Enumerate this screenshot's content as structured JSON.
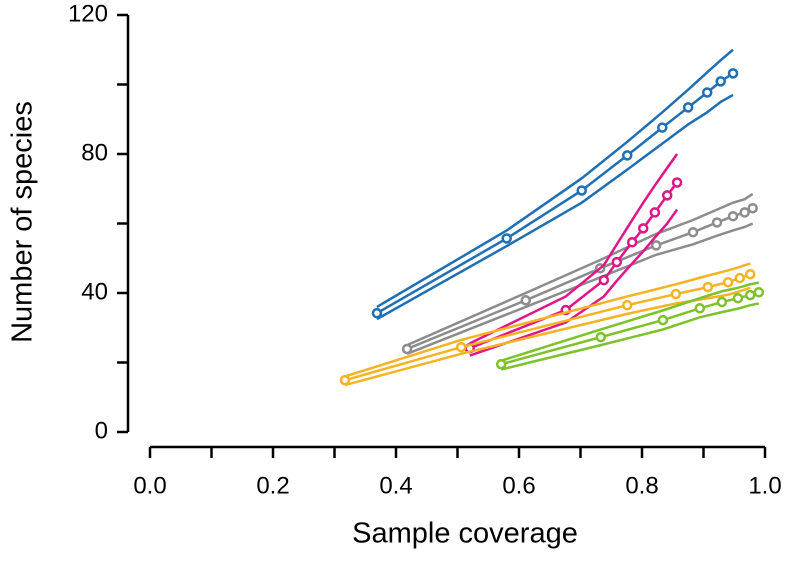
{
  "chart_data": {
    "type": "line",
    "xlabel": "Sample coverage",
    "ylabel": "Number of species",
    "xlim": [
      0,
      1
    ],
    "ylim": [
      0,
      120
    ],
    "xticks": [
      {
        "value": 0,
        "label": "0.0"
      },
      {
        "value": 0.2,
        "label": "0.2"
      },
      {
        "value": 0.4,
        "label": "0.4"
      },
      {
        "value": 0.6,
        "label": "0.6"
      },
      {
        "value": 0.8,
        "label": "0.8"
      },
      {
        "value": 1,
        "label": "1.0"
      }
    ],
    "xminorticks": [
      0.1,
      0.3,
      0.5,
      0.7,
      0.9
    ],
    "yticks": [
      0,
      40,
      80,
      120
    ],
    "yminorticks": [
      20,
      60,
      100
    ],
    "series": [
      {
        "color": "#1f6fb4",
        "x": [
          0.369,
          0.58,
          0.702,
          0.776,
          0.833,
          0.875,
          0.906,
          0.928,
          0.948
        ],
        "values": [
          34.2,
          55.7,
          69.5,
          79.6,
          87.6,
          93.4,
          97.7,
          100.9,
          103.2
        ],
        "upper": [
          36,
          58,
          73,
          83.5,
          92,
          98.5,
          103.5,
          107,
          110
        ],
        "lower": [
          32.5,
          53.5,
          66,
          75.5,
          83,
          88.5,
          92,
          95,
          97
        ]
      },
      {
        "color": "#8c8c8c",
        "x": [
          0.418,
          0.611,
          0.732,
          0.823,
          0.883,
          0.922,
          0.948,
          0.967,
          0.98
        ],
        "values": [
          23.9,
          37.9,
          47.1,
          53.7,
          57.5,
          60.3,
          62.1,
          63.2,
          64.4
        ],
        "upper": [
          25,
          40,
          49.5,
          57,
          61,
          64,
          66,
          67,
          68.5
        ],
        "lower": [
          22.5,
          36,
          44.5,
          51,
          54,
          56.5,
          58,
          59,
          60
        ]
      },
      {
        "color": "#e0158a",
        "x": [
          0.52,
          0.676,
          0.738,
          0.759,
          0.784,
          0.802,
          0.821,
          0.841,
          0.857
        ],
        "values": [
          24.1,
          35.1,
          43.7,
          48.9,
          54.6,
          58.6,
          63.2,
          68.1,
          71.8
        ],
        "upper": [
          25.5,
          39,
          48,
          54,
          61,
          66,
          71,
          76,
          80
        ],
        "lower": [
          22,
          31.5,
          39,
          43.5,
          48.5,
          52,
          56,
          60,
          64
        ]
      },
      {
        "color": "#f5b324",
        "x": [
          0.317,
          0.506,
          0.776,
          0.855,
          0.907,
          0.94,
          0.959,
          0.976
        ],
        "values": [
          14.9,
          24.4,
          36.5,
          39.7,
          41.7,
          43.1,
          44.3,
          45.4
        ],
        "upper": [
          16,
          26.5,
          39,
          42.5,
          45,
          46.5,
          47.5,
          48.5
        ],
        "lower": [
          13.5,
          22.5,
          34,
          37,
          38.5,
          39.5,
          40.5,
          41.5
        ]
      },
      {
        "color": "#7dc22a",
        "x": [
          0.571,
          0.733,
          0.834,
          0.894,
          0.93,
          0.956,
          0.976,
          0.99
        ],
        "values": [
          19.5,
          27.3,
          32.2,
          35.6,
          37.4,
          38.5,
          39.4,
          40.2
        ],
        "upper": [
          20.5,
          29.5,
          35,
          38.5,
          40.5,
          41.5,
          42.5,
          43
        ],
        "lower": [
          18,
          25,
          29.5,
          33,
          34.5,
          35.5,
          36.5,
          37
        ]
      }
    ]
  }
}
